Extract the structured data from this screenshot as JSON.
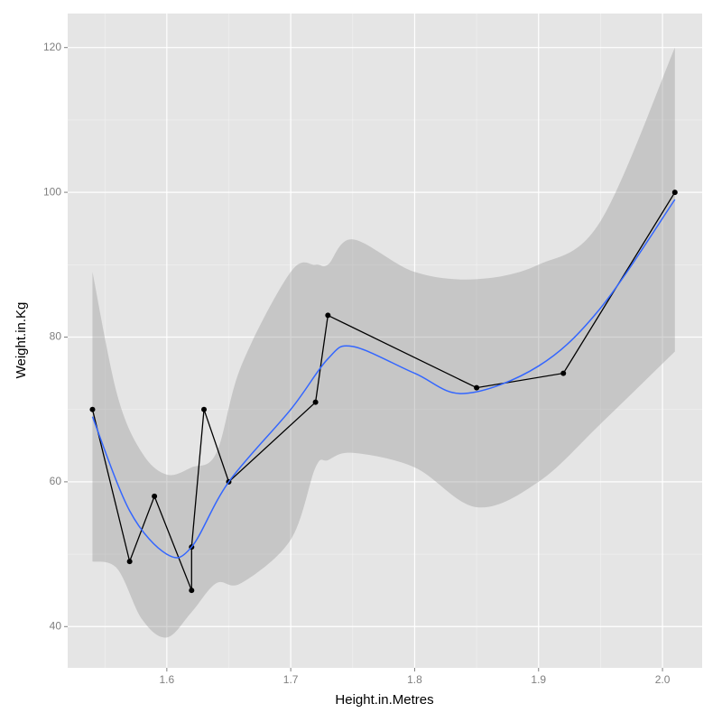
{
  "chart_data": {
    "type": "line",
    "x_label": "Height.in.Metres",
    "y_label": "Weight.in.Kg",
    "xlim": [
      1.52,
      2.032
    ],
    "ylim": [
      34.3,
      124.7
    ],
    "xticks": [
      1.6,
      1.7,
      1.8,
      1.9,
      {
        "value": 2,
        "label": "2.0"
      }
    ],
    "yticks": [
      40,
      60,
      80,
      100,
      120
    ],
    "xminor_ticks": [
      1.55,
      1.65,
      1.75,
      1.85,
      1.95
    ],
    "yminor_ticks": [
      50,
      70,
      90,
      110
    ],
    "grid": true,
    "ribbon": {
      "color": "#999999",
      "x": [
        1.54,
        1.56,
        1.58,
        1.6,
        1.62,
        1.64,
        1.66,
        1.7,
        1.72,
        1.73,
        1.75,
        1.8,
        1.85,
        1.9,
        1.95,
        2.01
      ],
      "lower": [
        49,
        48,
        41,
        38.5,
        42,
        46,
        46,
        52,
        62,
        63,
        64,
        62,
        56.5,
        60,
        68,
        78
      ],
      "upper": [
        89,
        72,
        64,
        61,
        62,
        64,
        76,
        89,
        90,
        90,
        93.5,
        89,
        88,
        90,
        96,
        120
      ]
    },
    "series": [
      {
        "color": "#000000",
        "markers": true,
        "x": [
          1.54,
          1.57,
          1.59,
          1.62,
          1.62,
          1.63,
          1.65,
          1.72,
          1.73,
          1.85,
          1.92,
          2.01
        ],
        "values": [
          70,
          49,
          58,
          45,
          51,
          70,
          60,
          71,
          83,
          73,
          75,
          100
        ]
      },
      {
        "color": "#3366ff",
        "markers": false,
        "x": [
          1.54,
          1.57,
          1.6,
          1.62,
          1.65,
          1.7,
          1.73,
          1.75,
          1.8,
          1.84,
          1.9,
          1.95,
          2.01
        ],
        "values": [
          69,
          56,
          50,
          51,
          60,
          70,
          77,
          78.7,
          75,
          72.2,
          76,
          84,
          99
        ]
      }
    ]
  }
}
